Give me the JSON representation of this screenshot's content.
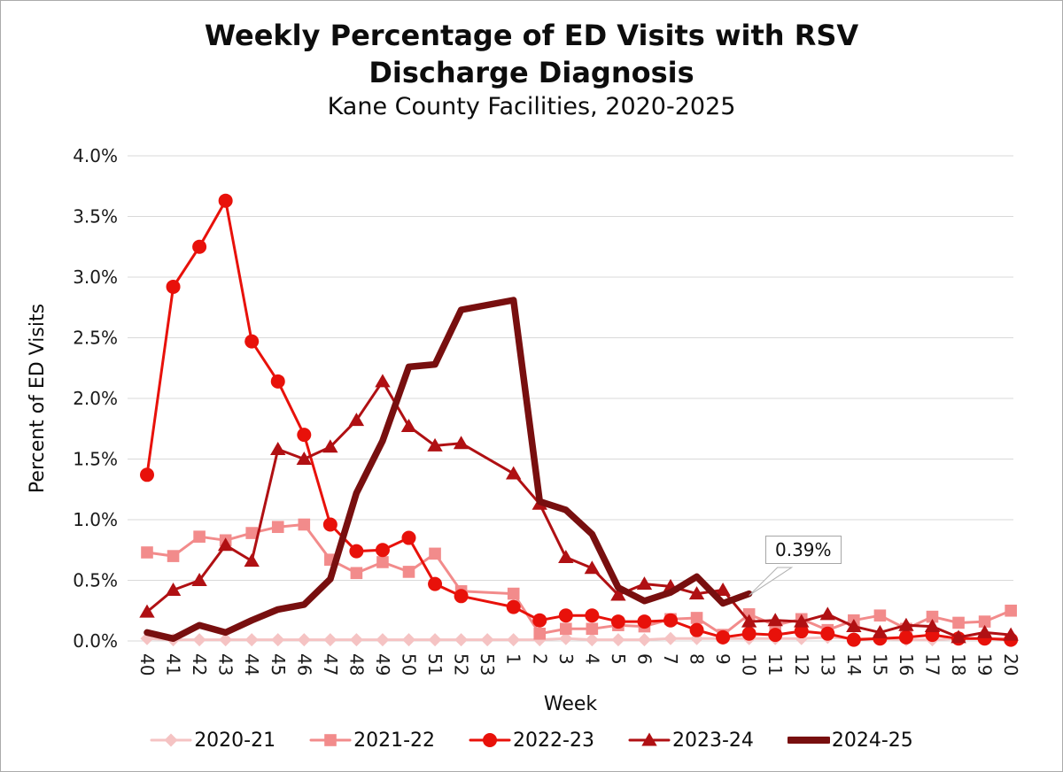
{
  "header": {
    "title_line1": "Weekly Percentage of ED Visits with RSV",
    "title_line2": "Discharge Diagnosis",
    "subtitle": "Kane County Facilities, 2020-2025"
  },
  "axes": {
    "y_title": "Percent of ED Visits",
    "x_title": "Week",
    "y_tick_labels": [
      "0.0%",
      "0.5%",
      "1.0%",
      "1.5%",
      "2.0%",
      "2.5%",
      "3.0%",
      "3.5%",
      "4.0%"
    ]
  },
  "annotation": {
    "text": "0.39%",
    "target_series": "2024-25",
    "target_week": "10"
  },
  "chart_data": {
    "type": "line",
    "title": "Weekly Percentage of ED Visits with RSV Discharge Diagnosis",
    "subtitle": "Kane County Facilities, 2020-2025",
    "xlabel": "Week",
    "ylabel": "Percent of ED Visits",
    "ylim": [
      0,
      4.0
    ],
    "y_tick_step": 0.5,
    "grid": "horizontal",
    "legend_position": "bottom",
    "categories": [
      "40",
      "41",
      "42",
      "43",
      "44",
      "45",
      "46",
      "47",
      "48",
      "49",
      "50",
      "51",
      "52",
      "53",
      "1",
      "2",
      "3",
      "4",
      "5",
      "6",
      "7",
      "8",
      "9",
      "10",
      "11",
      "12",
      "13",
      "14",
      "15",
      "16",
      "17",
      "18",
      "19",
      "20"
    ],
    "series": [
      {
        "name": "2020-21",
        "color": "#f5c3c3",
        "marker": "diamond",
        "line_width": 3,
        "values": [
          0.02,
          0.01,
          0.01,
          0.01,
          0.01,
          0.01,
          0.01,
          0.01,
          0.01,
          0.01,
          0.01,
          0.01,
          0.01,
          0.01,
          0.01,
          0.01,
          0.02,
          0.01,
          0.01,
          0.01,
          0.02,
          0.02,
          0.02,
          0.02,
          0.02,
          0.02,
          0.03,
          0.02,
          0.02,
          0.01,
          0.01,
          0.02,
          0.02,
          0.02
        ]
      },
      {
        "name": "2021-22",
        "color": "#f28b8b",
        "marker": "square",
        "line_width": 3,
        "values": [
          0.73,
          0.7,
          0.86,
          0.83,
          0.89,
          0.94,
          0.96,
          0.67,
          0.56,
          0.65,
          0.57,
          0.72,
          0.41,
          null,
          0.39,
          0.06,
          0.1,
          0.1,
          0.13,
          0.12,
          0.18,
          0.19,
          0.05,
          0.22,
          0.13,
          0.18,
          0.09,
          0.17,
          0.21,
          0.1,
          0.2,
          0.15,
          0.16,
          0.25
        ]
      },
      {
        "name": "2022-23",
        "color": "#e8110a",
        "marker": "circle",
        "line_width": 3,
        "values": [
          1.37,
          2.92,
          3.25,
          3.63,
          2.47,
          2.14,
          1.7,
          0.96,
          0.74,
          0.75,
          0.85,
          0.47,
          0.37,
          null,
          0.28,
          0.17,
          0.21,
          0.21,
          0.16,
          0.16,
          0.17,
          0.09,
          0.03,
          0.06,
          0.05,
          0.08,
          0.06,
          0.01,
          0.02,
          0.03,
          0.05,
          0.02,
          0.02,
          0.01
        ]
      },
      {
        "name": "2023-24",
        "color": "#b01013",
        "marker": "triangle",
        "line_width": 3,
        "values": [
          0.24,
          0.42,
          0.5,
          0.79,
          0.66,
          1.58,
          1.5,
          1.6,
          1.82,
          2.14,
          1.77,
          1.61,
          1.63,
          null,
          1.38,
          1.13,
          0.69,
          0.6,
          0.38,
          0.47,
          0.45,
          0.39,
          0.42,
          0.16,
          0.17,
          0.16,
          0.22,
          0.12,
          0.07,
          0.13,
          0.12,
          0.03,
          0.07,
          0.05
        ]
      },
      {
        "name": "2024-25",
        "color": "#780f0f",
        "marker": "thickline",
        "line_width": 7.5,
        "values": [
          0.07,
          0.02,
          0.13,
          0.07,
          0.17,
          0.26,
          0.3,
          0.51,
          1.22,
          1.65,
          2.26,
          2.28,
          2.73,
          null,
          2.81,
          1.15,
          1.08,
          0.88,
          0.44,
          0.33,
          0.4,
          0.53,
          0.31,
          0.39,
          null,
          null,
          null,
          null,
          null,
          null,
          null,
          null,
          null,
          null
        ]
      }
    ]
  }
}
